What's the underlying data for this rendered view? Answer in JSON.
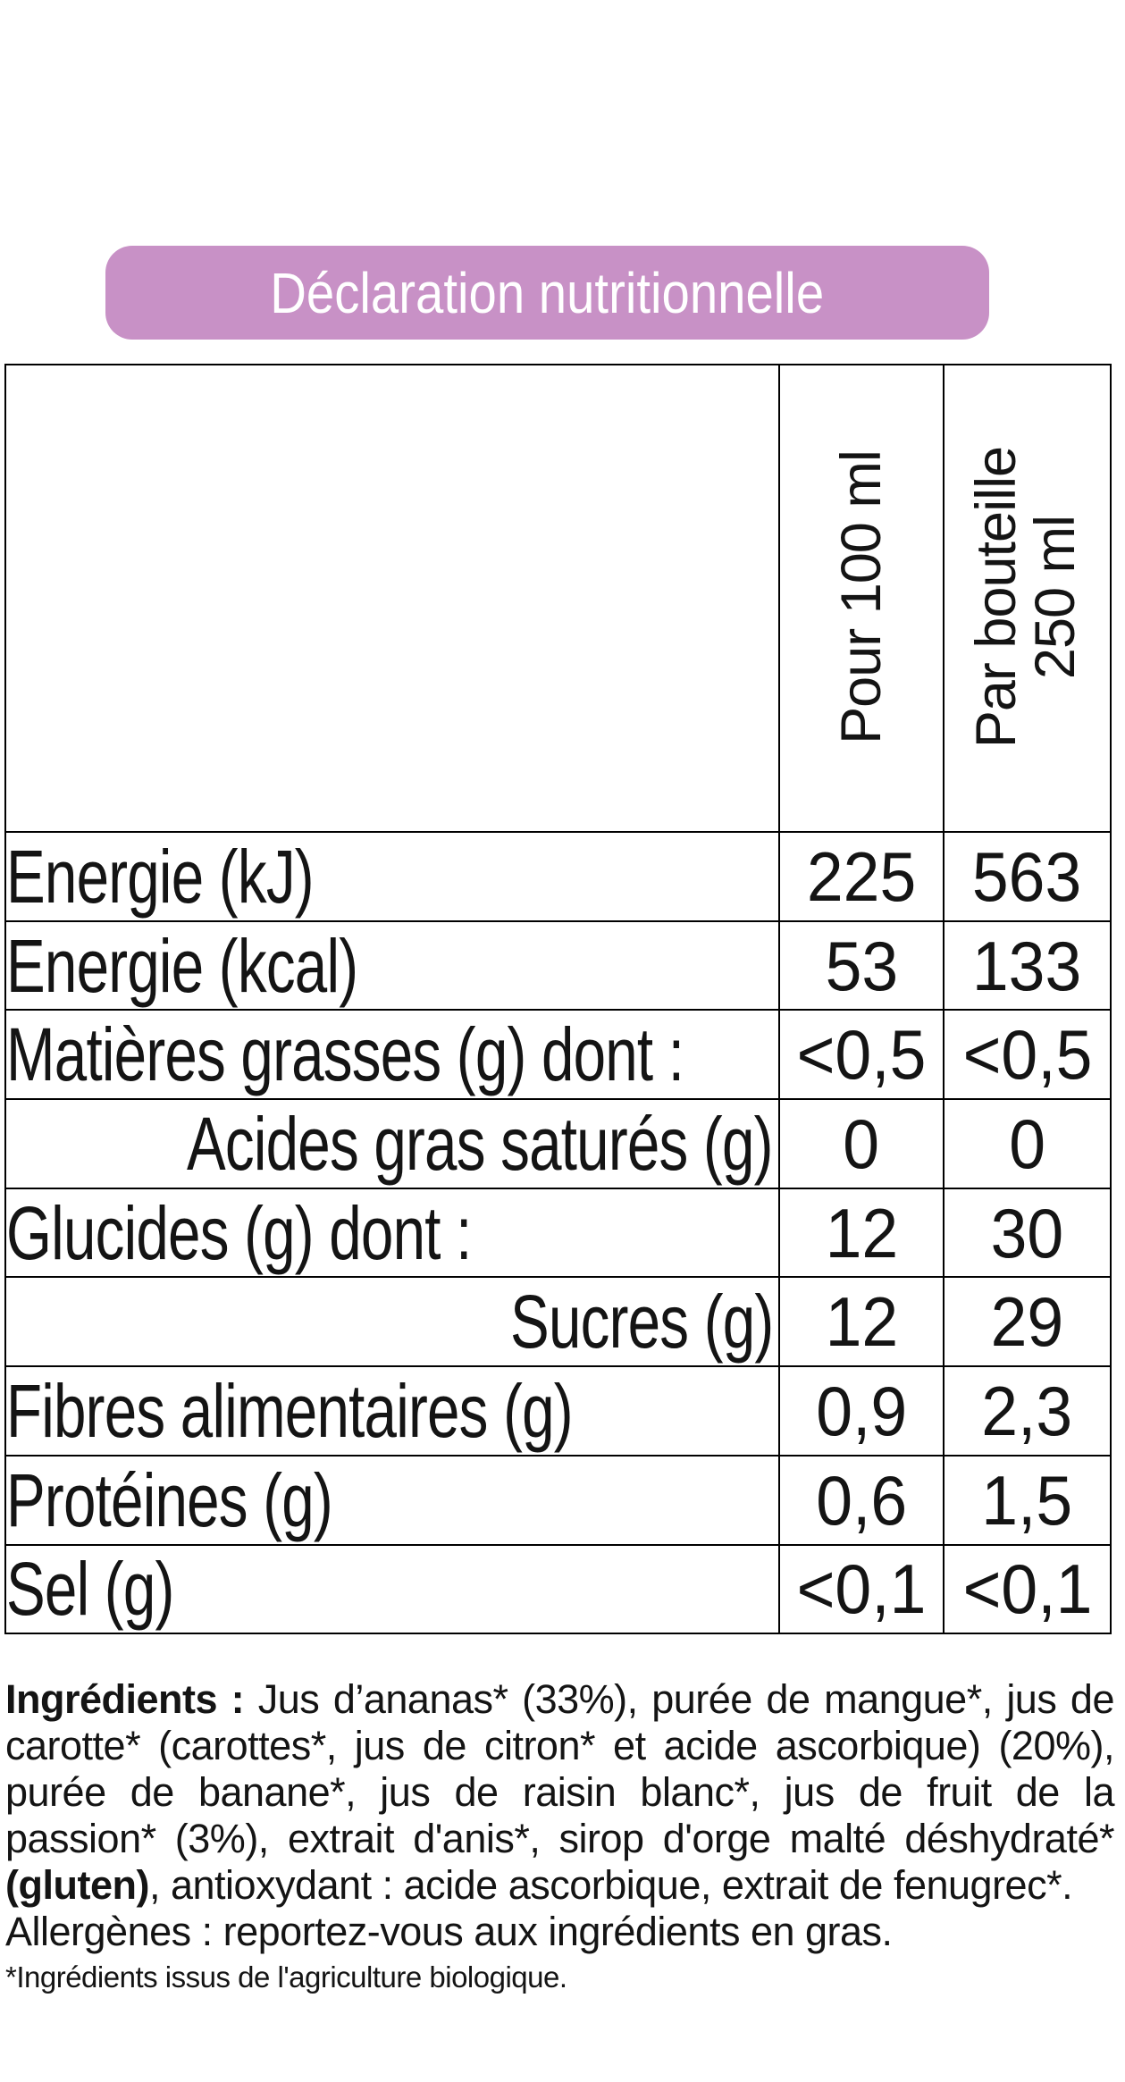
{
  "title": {
    "text": "Déclaration nutritionnelle"
  },
  "colors": {
    "badge_bg": "#c891c6",
    "badge_text": "#ffffff",
    "text": "#141414",
    "table_border": "#000000"
  },
  "table": {
    "column_headers": [
      {
        "lines": [
          "Pour 100 ml"
        ]
      },
      {
        "lines": [
          "Par bouteille",
          "250 ml"
        ]
      }
    ],
    "rows": [
      {
        "label": "Energie (kJ)",
        "align": "left",
        "per_100ml": "225",
        "per_bottle": "563"
      },
      {
        "label": "Energie (kcal)",
        "align": "left",
        "per_100ml": "53",
        "per_bottle": "133"
      },
      {
        "label": "Matières grasses (g) dont :",
        "align": "left",
        "per_100ml": "<0,5",
        "per_bottle": "<0,5"
      },
      {
        "label": "Acides gras saturés (g)",
        "align": "right",
        "per_100ml": "0",
        "per_bottle": "0"
      },
      {
        "label": "Glucides (g) dont :",
        "align": "left",
        "per_100ml": "12",
        "per_bottle": "30"
      },
      {
        "label": "Sucres (g)",
        "align": "right",
        "per_100ml": "12",
        "per_bottle": "29"
      },
      {
        "label": "Fibres alimentaires (g)",
        "align": "left",
        "per_100ml": "0,9",
        "per_bottle": "2,3"
      },
      {
        "label": "Protéines (g)",
        "align": "left",
        "per_100ml": "0,6",
        "per_bottle": "1,5"
      },
      {
        "label": "Sel (g)",
        "align": "left",
        "per_100ml": "<0,1",
        "per_bottle": "<0,1"
      }
    ]
  },
  "ingredients": {
    "lines": [
      {
        "justify": true,
        "segments": [
          {
            "text": "Ingrédients : ",
            "bold": true
          },
          {
            "text": "Jus d’ananas* (33%), purée de mangue*, jus de",
            "bold": false
          }
        ]
      },
      {
        "justify": true,
        "segments": [
          {
            "text": "carotte* (carottes*, jus de citron* et acide ascorbique) (20%),",
            "bold": false
          }
        ]
      },
      {
        "justify": true,
        "segments": [
          {
            "text": "purée de banane*, jus de raisin blanc*, jus de fruit de la",
            "bold": false
          }
        ]
      },
      {
        "justify": true,
        "segments": [
          {
            "text": "passion* (3%), extrait d'anis*, sirop d'orge malté déshydraté*",
            "bold": false
          }
        ]
      },
      {
        "justify": false,
        "segments": [
          {
            "text": "(gluten)",
            "bold": true
          },
          {
            "text": ", antioxydant : acide ascorbique, extrait de fenugrec*.",
            "bold": false
          }
        ]
      },
      {
        "justify": false,
        "segments": [
          {
            "text": "Allergènes : reportez-vous aux ingrédients en gras.",
            "bold": false
          }
        ]
      }
    ],
    "footnote": "*Ingrédients issus de l'agriculture biologique."
  }
}
